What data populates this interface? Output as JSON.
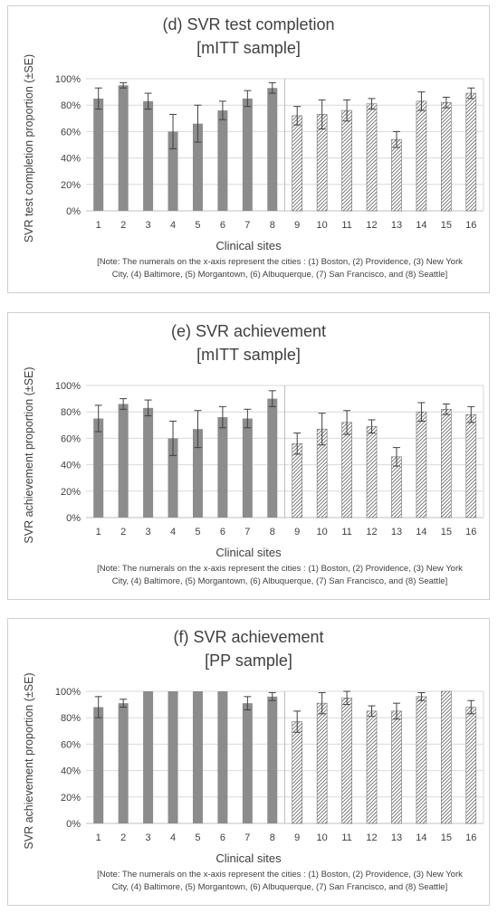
{
  "panels": [
    {
      "title_line1": "(d) SVR test completion",
      "title_line2": "[mITT sample]",
      "chart_data": {
        "type": "bar",
        "title": "(d) SVR test completion [mITT sample]",
        "xlabel": "Clinical sites",
        "ylabel": "SVR test completion proportion (±SE)",
        "ylim": [
          0,
          100
        ],
        "yticks": [
          "0%",
          "20%",
          "40%",
          "60%",
          "80%",
          "100%"
        ],
        "categories": [
          "1",
          "2",
          "3",
          "4",
          "5",
          "6",
          "7",
          "8",
          "9",
          "10",
          "11",
          "12",
          "13",
          "14",
          "15",
          "16"
        ],
        "values": [
          85,
          95,
          83,
          60,
          66,
          76,
          85,
          93,
          72,
          73,
          76,
          81,
          54,
          83,
          82,
          89
        ],
        "se": [
          8,
          2,
          6,
          13,
          14,
          7,
          6,
          4,
          7,
          11,
          8,
          4,
          6,
          7,
          4,
          4
        ],
        "grid": true,
        "note": "[Note: The numerals on the x-axis represent the cities : (1) Boston, (2) Providence, (3) New York City, (4) Baltimore, (5) Morgantown, (6) Albuquerque, (7) San Francisco, and (8) Seattle]"
      }
    },
    {
      "title_line1": "(e) SVR achievement",
      "title_line2": "[mITT sample]",
      "chart_data": {
        "type": "bar",
        "title": "(e) SVR achievement [mITT sample]",
        "xlabel": "Clinical sites",
        "ylabel": "SVR achievement proportion (±SE)",
        "ylim": [
          0,
          100
        ],
        "yticks": [
          "0%",
          "20%",
          "40%",
          "60%",
          "80%",
          "100%"
        ],
        "categories": [
          "1",
          "2",
          "3",
          "4",
          "5",
          "6",
          "7",
          "8",
          "9",
          "10",
          "11",
          "12",
          "13",
          "14",
          "15",
          "16"
        ],
        "values": [
          75,
          86,
          83,
          60,
          67,
          76,
          75,
          90,
          56,
          67,
          72,
          69,
          46,
          80,
          82,
          78
        ],
        "se": [
          10,
          4,
          6,
          13,
          14,
          8,
          7,
          6,
          8,
          12,
          9,
          5,
          7,
          7,
          4,
          6
        ],
        "grid": true,
        "note": "[Note: The numerals on the x-axis represent the cities : (1) Boston, (2) Providence, (3) New York City, (4) Baltimore, (5) Morgantown, (6) Albuquerque, (7) San Francisco, and (8) Seattle]"
      }
    },
    {
      "title_line1": "(f) SVR achievement",
      "title_line2": "[PP sample]",
      "chart_data": {
        "type": "bar",
        "title": "(f) SVR achievement [PP sample]",
        "xlabel": "Clinical sites",
        "ylabel": "SVR achievement proportion (±SE)",
        "ylim": [
          0,
          100
        ],
        "yticks": [
          "0%",
          "20%",
          "40%",
          "60%",
          "80%",
          "100%"
        ],
        "categories": [
          "1",
          "2",
          "3",
          "4",
          "5",
          "6",
          "7",
          "8",
          "9",
          "10",
          "11",
          "12",
          "13",
          "14",
          "15",
          "16"
        ],
        "values": [
          88,
          91,
          100,
          100,
          100,
          100,
          91,
          96,
          77,
          91,
          95,
          85,
          85,
          96,
          100,
          88
        ],
        "se": [
          8,
          3,
          0,
          0,
          0,
          0,
          5,
          3,
          8,
          8,
          5,
          4,
          6,
          3,
          0,
          5
        ],
        "grid": true,
        "note": "[Note: The numerals on the x-axis represent the cities : (1) Boston, (2) Providence, (3) New York City, (4) Baltimore, (5) Morgantown, (6) Albuquerque, (7) San Francisco, and (8) Seattle]"
      }
    }
  ],
  "colors": {
    "solid_bar": "#8c8c8c",
    "hatch": "#6f6f6f",
    "grid": "#d9d9d9",
    "axis": "#bfbfbf",
    "errorbar": "#404040"
  }
}
